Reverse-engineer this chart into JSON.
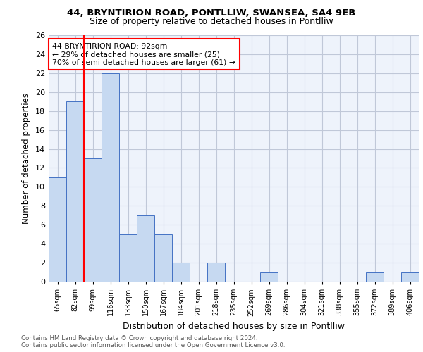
{
  "title1": "44, BRYNTIRION ROAD, PONTLLIW, SWANSEA, SA4 9EB",
  "title2": "Size of property relative to detached houses in Pontlliw",
  "xlabel": "Distribution of detached houses by size in Pontlliw",
  "ylabel": "Number of detached properties",
  "bar_values": [
    11,
    19,
    13,
    22,
    5,
    7,
    5,
    2,
    0,
    2,
    0,
    0,
    1,
    0,
    0,
    0,
    0,
    0,
    1,
    0,
    1
  ],
  "bin_labels": [
    "65sqm",
    "82sqm",
    "99sqm",
    "116sqm",
    "133sqm",
    "150sqm",
    "167sqm",
    "184sqm",
    "201sqm",
    "218sqm",
    "235sqm",
    "252sqm",
    "269sqm",
    "286sqm",
    "304sqm",
    "321sqm",
    "338sqm",
    "355sqm",
    "372sqm",
    "389sqm",
    "406sqm"
  ],
  "bar_color": "#c6d9f1",
  "bar_edge_color": "#4472c4",
  "annotation_text": "44 BRYNTIRION ROAD: 92sqm\n← 29% of detached houses are smaller (25)\n70% of semi-detached houses are larger (61) →",
  "vline_x": 1.5,
  "vline_color": "red",
  "ylim_max": 26,
  "yticks": [
    0,
    2,
    4,
    6,
    8,
    10,
    12,
    14,
    16,
    18,
    20,
    22,
    24,
    26
  ],
  "footer_text": "Contains HM Land Registry data © Crown copyright and database right 2024.\nContains public sector information licensed under the Open Government Licence v3.0.",
  "bg_color": "#eef3fb",
  "grid_color": "#c0c8d8"
}
